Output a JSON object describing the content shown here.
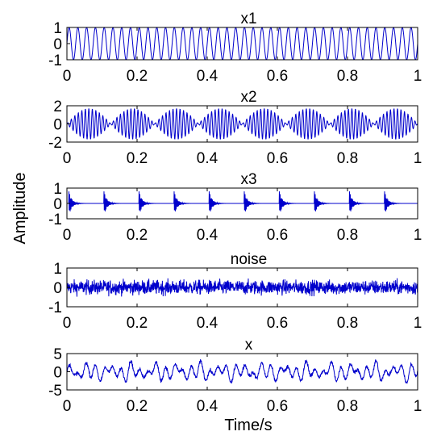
{
  "figure": {
    "ylabel": "Amplitude",
    "xlabel": "Time/s",
    "line_color": "#0000cc"
  },
  "chart_data": [
    {
      "type": "line",
      "title": "x1",
      "xlim": [
        0,
        1
      ],
      "ylim": [
        -1,
        1
      ],
      "xticks": [
        "0",
        "0.2",
        "0.4",
        "0.6",
        "0.8",
        "1"
      ],
      "yticks": [
        "1",
        "0",
        "-1"
      ],
      "grid": false,
      "series": [
        {
          "signal": "sine",
          "amplitude": 1,
          "frequency_hz": 40
        }
      ]
    },
    {
      "type": "line",
      "title": "x2",
      "xlim": [
        0,
        1
      ],
      "ylim": [
        -2,
        2
      ],
      "xticks": [
        "0",
        "0.2",
        "0.4",
        "0.6",
        "0.8",
        "1"
      ],
      "yticks": [
        "2",
        "0",
        "-2"
      ],
      "grid": false,
      "series": [
        {
          "signal": "amplitude-modulated",
          "amplitude": 1.7,
          "carrier_hz": 100,
          "envelope_hz": 8
        }
      ]
    },
    {
      "type": "line",
      "title": "x3",
      "xlim": [
        0,
        1
      ],
      "ylim": [
        -1,
        1
      ],
      "xticks": [
        "0",
        "0.2",
        "0.4",
        "0.6",
        "0.8",
        "1"
      ],
      "yticks": [
        "1",
        "0",
        "-1"
      ],
      "grid": false,
      "series": [
        {
          "signal": "periodic impulses",
          "amplitude": 0.9,
          "impulse_period_s": 0.1,
          "first_impulse_s": 0.005
        }
      ]
    },
    {
      "type": "line",
      "title": "noise",
      "xlim": [
        0,
        1
      ],
      "ylim": [
        -1,
        1
      ],
      "xticks": [
        "0",
        "0.2",
        "0.4",
        "0.6",
        "0.8",
        "1"
      ],
      "yticks": [
        "1",
        "0",
        "-1"
      ],
      "grid": false,
      "series": [
        {
          "signal": "random noise",
          "amplitude": 0.35
        }
      ]
    },
    {
      "type": "line",
      "title": "x",
      "xlim": [
        0,
        1
      ],
      "ylim": [
        -5,
        5
      ],
      "xticks": [
        "0",
        "0.2",
        "0.4",
        "0.6",
        "0.8",
        "1"
      ],
      "yticks": [
        "5",
        "0",
        "-5"
      ],
      "grid": false,
      "series": [
        {
          "signal": "sum of x1, x2, x3 and noise",
          "amplitude": 2.5
        }
      ]
    }
  ]
}
